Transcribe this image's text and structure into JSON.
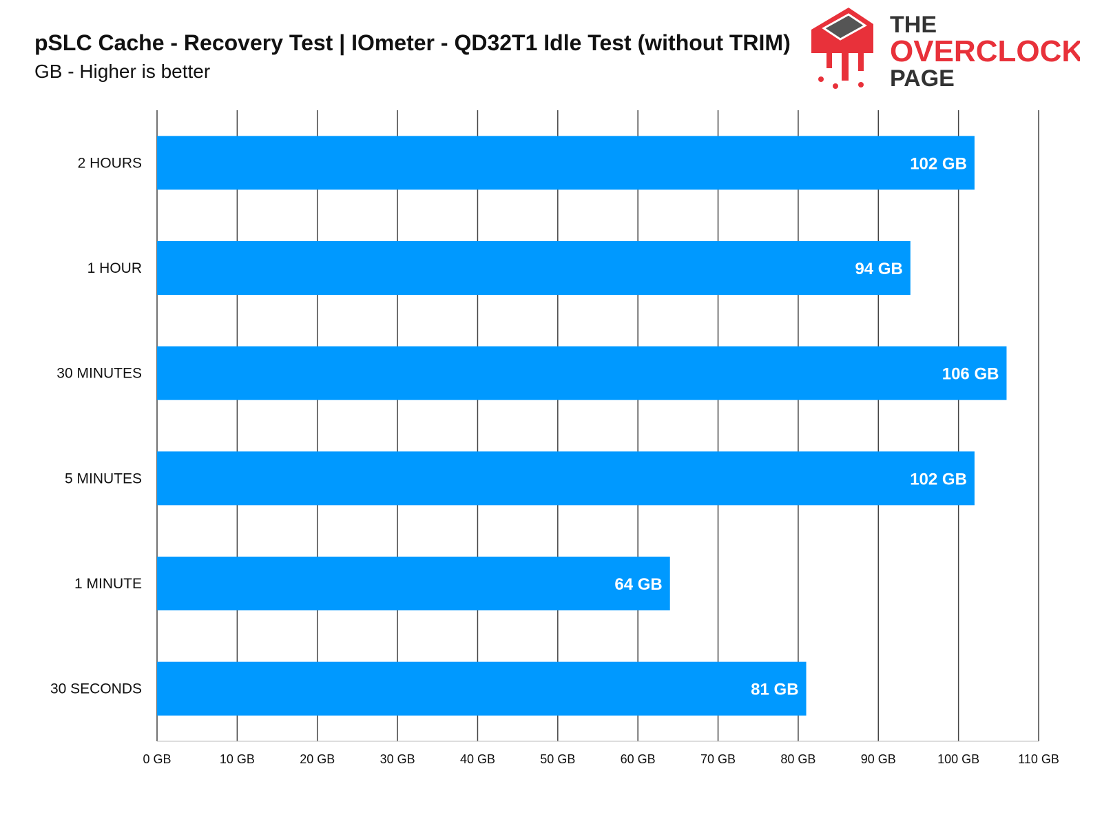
{
  "header": {
    "title": "pSLC Cache - Recovery Test | IOmeter - QD32T1 Idle Test (without TRIM)",
    "subtitle": "GB - Higher is better"
  },
  "logo": {
    "line1": "THE",
    "line2": "OVERCLOCK",
    "line3": "PAGE",
    "brand_color": "#e8313a"
  },
  "chart_data": {
    "type": "bar",
    "orientation": "horizontal",
    "categories": [
      "2 HOURS",
      "1 HOUR",
      "30 MINUTES",
      "5 MINUTES",
      "1 MINUTE",
      "30 SECONDS"
    ],
    "values": [
      102,
      94,
      106,
      102,
      64,
      81
    ],
    "value_labels": [
      "102 GB",
      "94 GB",
      "106 GB",
      "102 GB",
      "64 GB",
      "81 GB"
    ],
    "xlim": [
      0,
      110
    ],
    "xticks": [
      0,
      10,
      20,
      30,
      40,
      50,
      60,
      70,
      80,
      90,
      100,
      110
    ],
    "xtick_labels": [
      "0 GB",
      "10 GB",
      "20 GB",
      "30 GB",
      "40 GB",
      "50 GB",
      "60 GB",
      "70 GB",
      "80 GB",
      "90 GB",
      "100 GB",
      "110 GB"
    ],
    "grid": true,
    "bar_color": "#0099ff",
    "grid_color": "#444444"
  }
}
